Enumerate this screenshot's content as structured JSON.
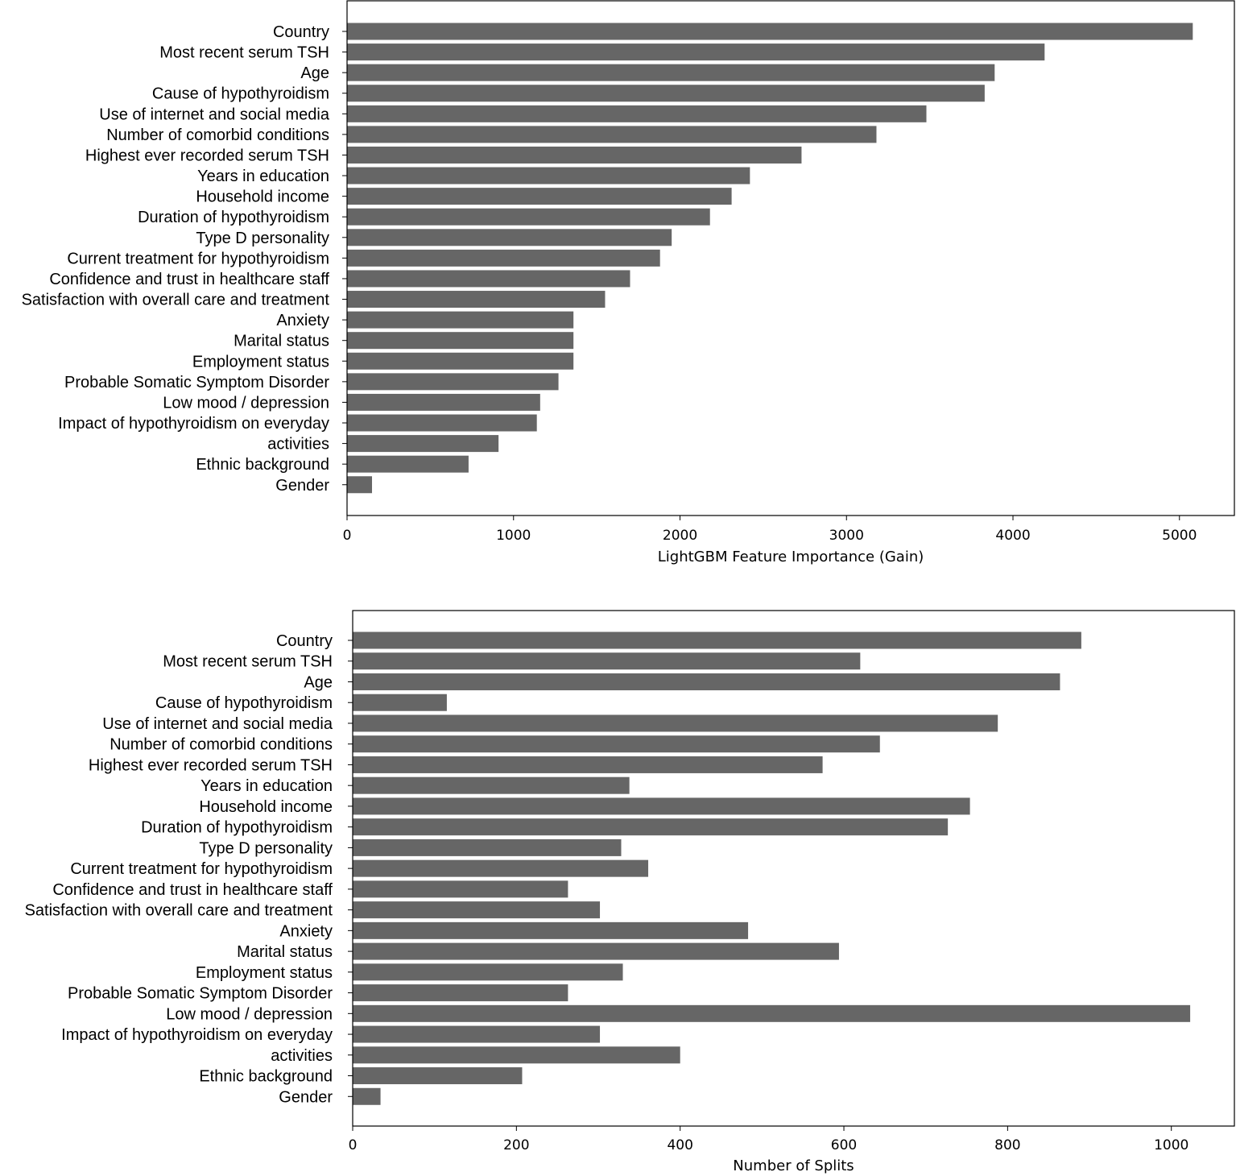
{
  "chart_data": [
    {
      "type": "bar",
      "orientation": "horizontal",
      "categories": [
        "Country",
        "Most recent serum TSH",
        "Age",
        "Cause of hypothyroidism",
        "Use of internet and social media",
        "Number of comorbid conditions",
        "Highest ever recorded serum TSH",
        "Years in education",
        "Household income",
        "Duration of hypothyroidism",
        "Type D personality",
        "Current treatment for hypothyroidism",
        "Confidence and trust in healthcare staff",
        "Satisfaction with overall care and treatment",
        "Anxiety",
        "Marital status",
        "Employment status",
        "Probable Somatic Symptom Disorder",
        "Low mood / depression",
        "Impact of hypothyroidism on everyday",
        "activities",
        "Ethnic background",
        "Gender"
      ],
      "values": [
        5080,
        4190,
        3890,
        3830,
        3480,
        3180,
        2730,
        2420,
        2310,
        2180,
        1950,
        1880,
        1700,
        1550,
        1360,
        1360,
        1360,
        1270,
        1160,
        1140,
        910,
        730,
        150
      ],
      "xlabel": "LightGBM Feature Importance (Gain)",
      "ylabel": "",
      "xlim": [
        0,
        5330
      ],
      "xticks": [
        "0",
        "1000",
        "2000",
        "3000",
        "4000",
        "5000"
      ],
      "bar_color": "#666666",
      "grid": false
    },
    {
      "type": "bar",
      "orientation": "horizontal",
      "categories": [
        "Country",
        "Most recent serum TSH",
        "Age",
        "Cause of hypothyroidism",
        "Use of internet and social media",
        "Number of comorbid conditions",
        "Highest ever recorded serum TSH",
        "Years in education",
        "Household income",
        "Duration of hypothyroidism",
        "Type D personality",
        "Current treatment for hypothyroidism",
        "Confidence and trust in healthcare staff",
        "Satisfaction with overall care and treatment",
        "Anxiety",
        "Marital status",
        "Employment status",
        "Probable Somatic Symptom Disorder",
        "Low mood / depression",
        "Impact of hypothyroidism on everyday",
        "activities",
        "Ethnic background",
        "Gender"
      ],
      "values": [
        890,
        620,
        864,
        115,
        788,
        644,
        574,
        338,
        754,
        727,
        328,
        361,
        263,
        302,
        483,
        594,
        330,
        263,
        1023,
        302,
        400,
        207,
        34
      ],
      "xlabel": "Number of Splits",
      "ylabel": "",
      "xlim": [
        0,
        1077
      ],
      "xticks": [
        "0",
        "200",
        "400",
        "600",
        "800",
        "1000"
      ],
      "bar_color": "#666666",
      "grid": false
    }
  ]
}
